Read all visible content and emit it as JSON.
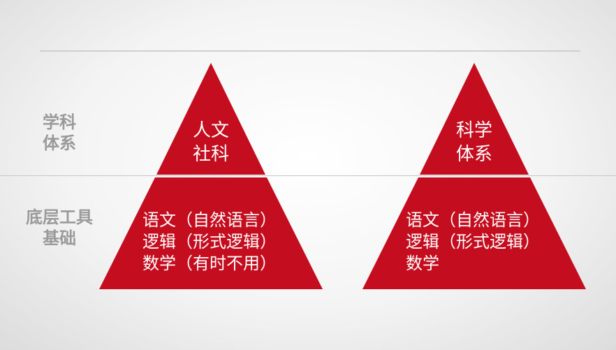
{
  "side_labels": {
    "top": [
      "学科",
      "体系"
    ],
    "bottom": [
      "底层工具",
      "基础"
    ]
  },
  "pyramids": [
    {
      "apex": [
        "人文",
        "社科"
      ],
      "base": [
        "语文（自然语言）",
        "逻辑（形式逻辑）",
        "数学（有时不用）"
      ]
    },
    {
      "apex": [
        "科学",
        "体系"
      ],
      "base": [
        "语文（自然语言）",
        "逻辑（形式逻辑）",
        "数学"
      ]
    }
  ],
  "colors": {
    "pyramid_fill": "#c40d1e",
    "side_label": "#9a9a9a"
  }
}
